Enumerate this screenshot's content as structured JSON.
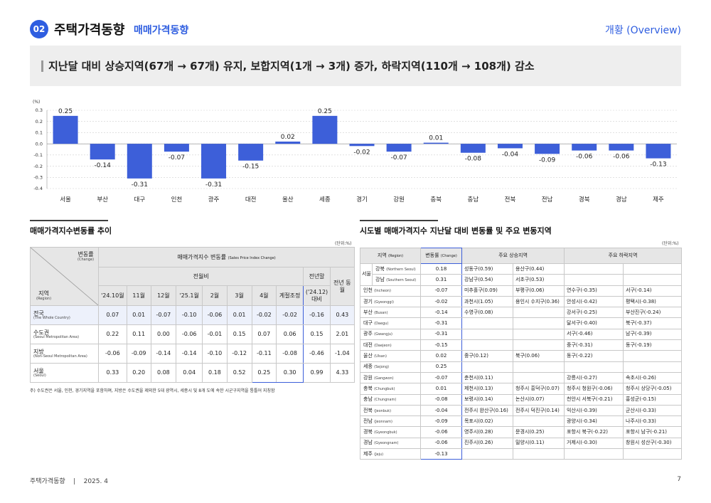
{
  "header": {
    "number": "02",
    "title": "주택가격동향",
    "subtitle": "매매가격동향",
    "right": "개황 (Overview)"
  },
  "summary": "지난달 대비 상승지역(67개 → 67개) 유지, 보합지역(1개 → 3개) 증가, 하락지역(110개 → 108개) 감소",
  "chart_data": {
    "type": "bar",
    "ylabel": "(%)",
    "ylim": [
      -0.4,
      0.3
    ],
    "yticks": [
      "0.3",
      "0.2",
      "0.1",
      "0.0",
      "-0.1",
      "-0.2",
      "-0.3",
      "-0.4"
    ],
    "categories": [
      "서울",
      "부산",
      "대구",
      "인천",
      "광주",
      "대전",
      "울산",
      "세종",
      "경기",
      "강원",
      "충북",
      "충남",
      "전북",
      "전남",
      "경북",
      "경남",
      "제주"
    ],
    "values": [
      0.25,
      -0.14,
      -0.31,
      -0.07,
      -0.31,
      -0.15,
      0.02,
      0.25,
      -0.02,
      -0.07,
      0.01,
      -0.08,
      -0.04,
      -0.09,
      -0.06,
      -0.06,
      -0.13
    ],
    "labels": [
      "0.25",
      "-0.14",
      "-0.31",
      "-0.07",
      "-0.31",
      "-0.15",
      "0.02",
      "0.25",
      "-0.02",
      "-0.07",
      "0.01",
      "-0.08",
      "-0.04",
      "-0.09",
      "-0.06",
      "-0.06",
      "-0.13"
    ],
    "grid": true,
    "bar_color": "#3d5fd9"
  },
  "left_section": {
    "title": "매매가격지수변동률 추이",
    "unit": "(단위:%)",
    "corner_top": "변동률",
    "corner_top_en": "(Change)",
    "corner_bottom": "지역",
    "corner_bottom_en": "(Region)",
    "group_header": "매매가격지수 변동률",
    "group_header_en": "(Sales Price Index Change)",
    "mom_header": "전월비",
    "prev_year_end": "전년말",
    "prev_year_same": "전년 동월",
    "columns": [
      "'24.10월",
      "11월",
      "12월",
      "'25.1월",
      "2월",
      "3월",
      "4월",
      "계절조정",
      "('24.12) 대비",
      "('24.4) 대비"
    ],
    "rows": [
      {
        "name": "전국",
        "en": "(The Whole Country)",
        "values": [
          "0.07",
          "0.01",
          "-0.07",
          "-0.10",
          "-0.06",
          "0.01",
          "-0.02",
          "-0.02",
          "-0.16",
          "0.43"
        ]
      },
      {
        "name": "수도권",
        "en": "(Seoul Metropolitan Area)",
        "values": [
          "0.22",
          "0.11",
          "0.00",
          "-0.06",
          "-0.01",
          "0.15",
          "0.07",
          "0.06",
          "0.15",
          "2.01"
        ]
      },
      {
        "name": "지방",
        "en": "(Non-Seoul Metropolitan Area)",
        "values": [
          "-0.06",
          "-0.09",
          "-0.14",
          "-0.14",
          "-0.10",
          "-0.12",
          "-0.11",
          "-0.08",
          "-0.46",
          "-1.04"
        ]
      },
      {
        "name": "서울",
        "en": "(Seoul)",
        "values": [
          "0.33",
          "0.20",
          "0.08",
          "0.04",
          "0.18",
          "0.52",
          "0.25",
          "0.30",
          "0.99",
          "4.33"
        ]
      }
    ],
    "note": "주) 수도권은 서울, 인천, 경기지역을 포함하며, 지방은 수도권을 제외한 5대 광역시, 세종시 및 8개 도에 속한 시군구지역을 통틀어 지칭함"
  },
  "right_section": {
    "title": "시도별 매매가격지수 지난달 대비 변동률 및 주요 변동지역",
    "unit": "(단위:%)",
    "header_region": "지역",
    "header_region_en": "(Region)",
    "header_change": "변동률",
    "header_change_en": "(Change)",
    "header_up": "주요 상승지역",
    "header_down": "주요 하락지역",
    "seoul_label": "서울",
    "rows": [
      {
        "region": "강북",
        "en": "(Northern Seoul)",
        "change": "0.18",
        "up1": "성동구(0.59)",
        "up2": "용산구(0.44)",
        "down1": "",
        "down2": ""
      },
      {
        "region": "강남",
        "en": "(Southern Seoul)",
        "change": "0.31",
        "up1": "강남구(0.54)",
        "up2": "서초구(0.53)",
        "down1": "",
        "down2": ""
      },
      {
        "region": "인천",
        "en": "(Incheon)",
        "change": "-0.07",
        "up1": "미추홀구(0.09)",
        "up2": "부평구(0.06)",
        "down1": "연수구(-0.35)",
        "down2": "서구(-0.14)"
      },
      {
        "region": "경기",
        "en": "(Gyeonggi)",
        "change": "-0.02",
        "up1": "과천시(1.05)",
        "up2": "용인시 수지구(0.36)",
        "down1": "안성시(-0.42)",
        "down2": "평택시(-0.38)"
      },
      {
        "region": "부산",
        "en": "(Busan)",
        "change": "-0.14",
        "up1": "수영구(0.08)",
        "up2": "",
        "down1": "강서구(-0.25)",
        "down2": "부산진구(-0.24)"
      },
      {
        "region": "대구",
        "en": "(Daegu)",
        "change": "-0.31",
        "up1": "",
        "up2": "",
        "down1": "달서구(-0.40)",
        "down2": "북구(-0.37)"
      },
      {
        "region": "광주",
        "en": "(Gwangju)",
        "change": "-0.31",
        "up1": "",
        "up2": "",
        "down1": "서구(-0.46)",
        "down2": "남구(-0.39)"
      },
      {
        "region": "대전",
        "en": "(Daejeon)",
        "change": "-0.15",
        "up1": "",
        "up2": "",
        "down1": "중구(-0.31)",
        "down2": "동구(-0.19)"
      },
      {
        "region": "울산",
        "en": "(Ulsan)",
        "change": "0.02",
        "up1": "중구(0.12)",
        "up2": "북구(0.06)",
        "down1": "동구(-0.22)",
        "down2": ""
      },
      {
        "region": "세종",
        "en": "(Sejong)",
        "change": "0.25",
        "up1": "",
        "up2": "",
        "down1": "",
        "down2": ""
      },
      {
        "region": "강원",
        "en": "(Gangwon)",
        "change": "-0.07",
        "up1": "춘천시(0.11)",
        "up2": "",
        "down1": "강릉시(-0.27)",
        "down2": "속초시(-0.26)"
      },
      {
        "region": "충북",
        "en": "(Chungbuk)",
        "change": "0.01",
        "up1": "제천시(0.13)",
        "up2": "청주시 흥덕구(0.07)",
        "down1": "청주시 청원구(-0.06)",
        "down2": "청주시 상당구(-0.05)"
      },
      {
        "region": "충남",
        "en": "(Chungnam)",
        "change": "-0.08",
        "up1": "보령시(0.14)",
        "up2": "논산시(0.07)",
        "down1": "천안시 서북구(-0.21)",
        "down2": "홍성군(-0.15)"
      },
      {
        "region": "전북",
        "en": "(Jeonbuk)",
        "change": "-0.04",
        "up1": "전주시 완산구(0.16)",
        "up2": "전주시 덕진구(0.14)",
        "down1": "익산시(-0.39)",
        "down2": "군산시(-0.33)"
      },
      {
        "region": "전남",
        "en": "(Jeonnam)",
        "change": "-0.09",
        "up1": "목포시(0.02)",
        "up2": "",
        "down1": "광양시(-0.34)",
        "down2": "나주시(-0.33)"
      },
      {
        "region": "경북",
        "en": "(Gyeongbuk)",
        "change": "-0.06",
        "up1": "영주시(0.28)",
        "up2": "문경시(0.25)",
        "down1": "포항시 북구(-0.22)",
        "down2": "포항시 남구(-0.21)"
      },
      {
        "region": "경남",
        "en": "(Gyeongnam)",
        "change": "-0.06",
        "up1": "진주시(0.26)",
        "up2": "밀양시(0.11)",
        "down1": "거제시(-0.30)",
        "down2": "창원시 성산구(-0.30)"
      },
      {
        "region": "제주",
        "en": "(Jeju)",
        "change": "-0.13",
        "up1": "",
        "up2": "",
        "down1": "",
        "down2": ""
      }
    ]
  },
  "footer": {
    "left": "주택가격동향    |    2025. 4",
    "page": "7"
  },
  "colors": {
    "accent": "#2f5ee0",
    "bar": "#3d5fd9",
    "highlight_border": "#3d5fd9"
  }
}
